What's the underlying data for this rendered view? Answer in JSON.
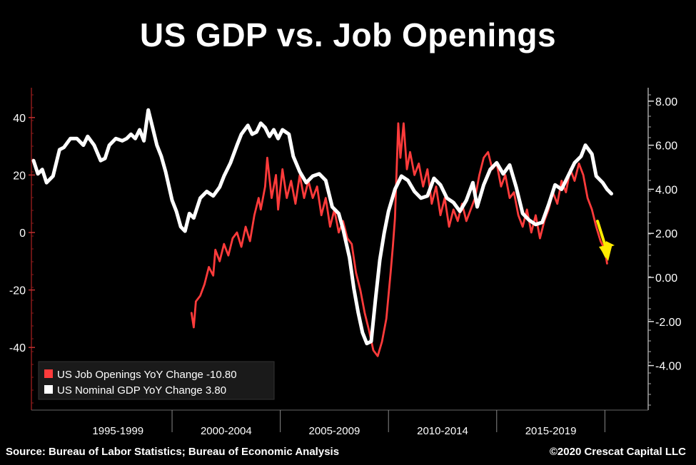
{
  "title": "US GDP vs. Job Openings",
  "source": "Source: Bureau of Labor Statistics; Bureau of Economic Analysis",
  "copyright": "©2020 Crescat Capital LLC",
  "chart_data": {
    "type": "line",
    "x_range": [
      1993.5,
      2022.0
    ],
    "x_ticks": [
      {
        "label": "1995-1999",
        "start": 1995,
        "end": 2000
      },
      {
        "label": "2000-2004",
        "start": 2000,
        "end": 2005
      },
      {
        "label": "2005-2009",
        "start": 2005,
        "end": 2010
      },
      {
        "label": "2010-2014",
        "start": 2010,
        "end": 2015
      },
      {
        "label": "2015-2019",
        "start": 2015,
        "end": 2020
      }
    ],
    "y_left": {
      "ticks": [
        "40",
        "20",
        "0",
        "-20",
        "-40"
      ],
      "values": [
        40,
        20,
        0,
        -20,
        -40
      ],
      "range": [
        -60,
        50
      ]
    },
    "y_right": {
      "ticks": [
        "8.00",
        "6.00",
        "4.00",
        "2.00",
        "0.00",
        "-2.00",
        "-4.00"
      ],
      "values": [
        8,
        6,
        4,
        2,
        0,
        -2,
        -4
      ],
      "range": [
        -6,
        9
      ]
    },
    "series": [
      {
        "name": "US Job Openings YoY Change",
        "last_value": "-10.80",
        "color": "#ff3b3b",
        "axis": "left",
        "points": [
          [
            2000.9,
            -28
          ],
          [
            2001.0,
            -33
          ],
          [
            2001.1,
            -24
          ],
          [
            2001.3,
            -22
          ],
          [
            2001.5,
            -18
          ],
          [
            2001.7,
            -12
          ],
          [
            2001.9,
            -15
          ],
          [
            2002.0,
            -6
          ],
          [
            2002.2,
            -10
          ],
          [
            2002.4,
            -4
          ],
          [
            2002.6,
            -8
          ],
          [
            2002.8,
            -2
          ],
          [
            2003.0,
            0
          ],
          [
            2003.2,
            -5
          ],
          [
            2003.4,
            2
          ],
          [
            2003.6,
            -3
          ],
          [
            2003.8,
            6
          ],
          [
            2004.0,
            12
          ],
          [
            2004.1,
            8
          ],
          [
            2004.3,
            16
          ],
          [
            2004.4,
            26
          ],
          [
            2004.6,
            12
          ],
          [
            2004.8,
            20
          ],
          [
            2004.9,
            8
          ],
          [
            2005.1,
            22
          ],
          [
            2005.3,
            12
          ],
          [
            2005.5,
            18
          ],
          [
            2005.7,
            10
          ],
          [
            2005.9,
            20
          ],
          [
            2006.1,
            12
          ],
          [
            2006.3,
            18
          ],
          [
            2006.5,
            12
          ],
          [
            2006.7,
            16
          ],
          [
            2006.9,
            6
          ],
          [
            2007.1,
            12
          ],
          [
            2007.3,
            2
          ],
          [
            2007.5,
            8
          ],
          [
            2007.7,
            0
          ],
          [
            2007.9,
            4
          ],
          [
            2008.1,
            -2
          ],
          [
            2008.3,
            -4
          ],
          [
            2008.5,
            -14
          ],
          [
            2008.7,
            -20
          ],
          [
            2008.9,
            -28
          ],
          [
            2009.1,
            -34
          ],
          [
            2009.3,
            -41
          ],
          [
            2009.5,
            -43
          ],
          [
            2009.7,
            -38
          ],
          [
            2009.9,
            -30
          ],
          [
            2010.1,
            -14
          ],
          [
            2010.2,
            -5
          ],
          [
            2010.3,
            5
          ],
          [
            2010.45,
            38
          ],
          [
            2010.55,
            26
          ],
          [
            2010.7,
            38
          ],
          [
            2010.85,
            22
          ],
          [
            2011.0,
            28
          ],
          [
            2011.2,
            20
          ],
          [
            2011.4,
            24
          ],
          [
            2011.6,
            16
          ],
          [
            2011.8,
            22
          ],
          [
            2012.0,
            10
          ],
          [
            2012.2,
            16
          ],
          [
            2012.4,
            6
          ],
          [
            2012.6,
            12
          ],
          [
            2012.8,
            2
          ],
          [
            2013.0,
            8
          ],
          [
            2013.2,
            4
          ],
          [
            2013.4,
            10
          ],
          [
            2013.6,
            4
          ],
          [
            2013.8,
            8
          ],
          [
            2014.0,
            12
          ],
          [
            2014.2,
            20
          ],
          [
            2014.4,
            26
          ],
          [
            2014.6,
            28
          ],
          [
            2014.8,
            22
          ],
          [
            2015.0,
            24
          ],
          [
            2015.2,
            16
          ],
          [
            2015.4,
            20
          ],
          [
            2015.6,
            12
          ],
          [
            2015.8,
            14
          ],
          [
            2016.0,
            6
          ],
          [
            2016.2,
            2
          ],
          [
            2016.4,
            8
          ],
          [
            2016.6,
            0
          ],
          [
            2016.8,
            6
          ],
          [
            2017.0,
            -2
          ],
          [
            2017.2,
            4
          ],
          [
            2017.4,
            8
          ],
          [
            2017.6,
            14
          ],
          [
            2017.8,
            10
          ],
          [
            2018.0,
            18
          ],
          [
            2018.2,
            14
          ],
          [
            2018.4,
            22
          ],
          [
            2018.6,
            18
          ],
          [
            2018.8,
            24
          ],
          [
            2019.0,
            20
          ],
          [
            2019.2,
            12
          ],
          [
            2019.4,
            8
          ],
          [
            2019.6,
            2
          ],
          [
            2019.8,
            -3
          ],
          [
            2020.0,
            -6
          ],
          [
            2020.1,
            -10.8
          ]
        ]
      },
      {
        "name": "US Nominal GDP YoY Change",
        "last_value": "3.80",
        "color": "#ffffff",
        "axis": "right",
        "points": [
          [
            1993.6,
            5.3
          ],
          [
            1993.8,
            4.7
          ],
          [
            1994.0,
            4.9
          ],
          [
            1994.2,
            4.3
          ],
          [
            1994.5,
            4.6
          ],
          [
            1994.8,
            5.8
          ],
          [
            1995.0,
            5.9
          ],
          [
            1995.3,
            6.3
          ],
          [
            1995.6,
            6.3
          ],
          [
            1995.9,
            6.0
          ],
          [
            1996.1,
            6.4
          ],
          [
            1996.4,
            6.0
          ],
          [
            1996.7,
            5.3
          ],
          [
            1996.9,
            5.4
          ],
          [
            1997.1,
            6.0
          ],
          [
            1997.4,
            6.3
          ],
          [
            1997.7,
            6.2
          ],
          [
            1997.9,
            6.3
          ],
          [
            1998.1,
            6.5
          ],
          [
            1998.3,
            6.3
          ],
          [
            1998.5,
            6.7
          ],
          [
            1998.7,
            6.2
          ],
          [
            1998.9,
            7.6
          ],
          [
            1999.1,
            6.8
          ],
          [
            1999.3,
            6.0
          ],
          [
            1999.5,
            5.5
          ],
          [
            1999.7,
            4.8
          ],
          [
            2000.0,
            3.5
          ],
          [
            2000.2,
            3.0
          ],
          [
            2000.4,
            2.3
          ],
          [
            2000.6,
            2.1
          ],
          [
            2000.8,
            2.9
          ],
          [
            2001.0,
            2.7
          ],
          [
            2001.3,
            3.6
          ],
          [
            2001.6,
            3.9
          ],
          [
            2001.9,
            3.7
          ],
          [
            2002.2,
            4.1
          ],
          [
            2002.4,
            4.6
          ],
          [
            2002.7,
            5.2
          ],
          [
            2003.0,
            6.0
          ],
          [
            2003.2,
            6.5
          ],
          [
            2003.5,
            6.9
          ],
          [
            2003.7,
            6.5
          ],
          [
            2003.9,
            6.6
          ],
          [
            2004.1,
            7.0
          ],
          [
            2004.3,
            6.8
          ],
          [
            2004.5,
            6.4
          ],
          [
            2004.7,
            6.7
          ],
          [
            2004.9,
            6.3
          ],
          [
            2005.1,
            6.7
          ],
          [
            2005.4,
            6.5
          ],
          [
            2005.6,
            5.5
          ],
          [
            2005.9,
            4.8
          ],
          [
            2006.2,
            4.3
          ],
          [
            2006.5,
            4.6
          ],
          [
            2006.8,
            4.7
          ],
          [
            2007.1,
            4.4
          ],
          [
            2007.4,
            3.2
          ],
          [
            2007.7,
            2.9
          ],
          [
            2007.9,
            2.2
          ],
          [
            2008.2,
            0.9
          ],
          [
            2008.4,
            -0.5
          ],
          [
            2008.6,
            -1.6
          ],
          [
            2008.8,
            -2.5
          ],
          [
            2009.0,
            -3.0
          ],
          [
            2009.2,
            -2.9
          ],
          [
            2009.4,
            -1.0
          ],
          [
            2009.6,
            0.8
          ],
          [
            2009.8,
            2.0
          ],
          [
            2010.0,
            3.0
          ],
          [
            2010.3,
            4.0
          ],
          [
            2010.6,
            4.6
          ],
          [
            2010.9,
            4.4
          ],
          [
            2011.2,
            3.9
          ],
          [
            2011.5,
            3.6
          ],
          [
            2011.8,
            3.7
          ],
          [
            2012.1,
            4.5
          ],
          [
            2012.4,
            4.2
          ],
          [
            2012.7,
            3.6
          ],
          [
            2013.0,
            3.4
          ],
          [
            2013.3,
            3.0
          ],
          [
            2013.6,
            3.5
          ],
          [
            2013.9,
            4.3
          ],
          [
            2014.1,
            3.2
          ],
          [
            2014.4,
            4.2
          ],
          [
            2014.7,
            4.9
          ],
          [
            2015.0,
            5.2
          ],
          [
            2015.3,
            4.7
          ],
          [
            2015.6,
            5.1
          ],
          [
            2015.9,
            4.1
          ],
          [
            2016.2,
            2.9
          ],
          [
            2016.5,
            2.6
          ],
          [
            2016.8,
            2.4
          ],
          [
            2017.1,
            2.5
          ],
          [
            2017.4,
            3.3
          ],
          [
            2017.7,
            4.2
          ],
          [
            2018.0,
            4.0
          ],
          [
            2018.3,
            4.6
          ],
          [
            2018.6,
            5.2
          ],
          [
            2018.9,
            5.5
          ],
          [
            2019.1,
            6.0
          ],
          [
            2019.4,
            5.6
          ],
          [
            2019.6,
            4.6
          ],
          [
            2019.9,
            4.3
          ],
          [
            2020.1,
            4.0
          ],
          [
            2020.3,
            3.8
          ]
        ]
      }
    ],
    "annotation": "yellow-down-arrow",
    "legend_placement": "bottom-left",
    "grid": false
  }
}
